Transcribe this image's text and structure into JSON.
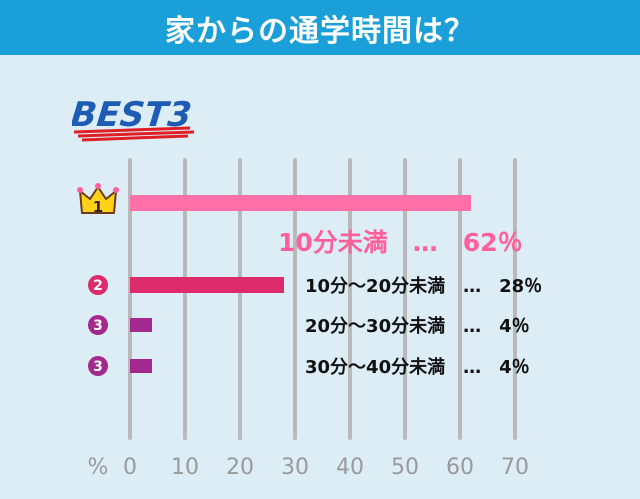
{
  "title": "家からの通学時間は？",
  "badge": "BEST3",
  "colors": {
    "header": "#1a9fd9",
    "background": "#dcedf6",
    "grid": "#b9b9b9",
    "rank1_bar": "#ff6fa8",
    "rank2_bar": "#dc2a6a",
    "rank3_bar": "#a2298d",
    "rank1_text": "#ff5f9a",
    "best3_text": "#1e5bb4",
    "best3_underline": "#e01f25"
  },
  "chart_data": {
    "type": "bar",
    "orientation": "horizontal",
    "title": "家からの通学時間は？",
    "xlabel": "%",
    "xlim": [
      0,
      70
    ],
    "x_ticks": [
      "0",
      "10",
      "20",
      "30",
      "40",
      "50",
      "60",
      "70"
    ],
    "grid": true,
    "categories": [
      "10分未満",
      "10分～20分未満",
      "20分～30分未満",
      "30分～40分未満"
    ],
    "values": [
      62,
      28,
      4,
      4
    ],
    "ranks": [
      "1",
      "2",
      "3",
      "3"
    ],
    "labels": [
      "10分未満　…　62％",
      "10分～20分未満　…　28％",
      "20分～30分未満　…　4％",
      "30分～40分未満　…　4％"
    ]
  }
}
